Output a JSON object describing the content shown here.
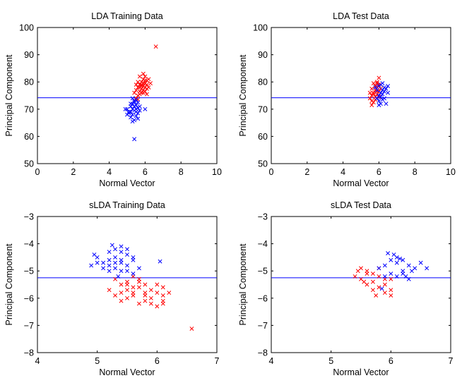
{
  "chart_data": [
    {
      "type": "scatter",
      "title": "LDA Training Data",
      "xlabel": "Normal Vector",
      "ylabel": "Principal Component",
      "xlim": [
        0,
        10
      ],
      "ylim": [
        50,
        100
      ],
      "xticks": [
        0,
        2,
        4,
        6,
        8,
        10
      ],
      "yticks": [
        50,
        60,
        70,
        80,
        90,
        100
      ],
      "marker": "x",
      "threshold_y": 74.2,
      "threshold_color": "#0000ff",
      "series": [
        {
          "color": "#ff0000",
          "points": [
            [
              5.5,
              74.0
            ],
            [
              5.6,
              75.0
            ],
            [
              5.7,
              76.5
            ],
            [
              5.8,
              77.5
            ],
            [
              5.9,
              78.5
            ],
            [
              6.0,
              79.5
            ],
            [
              6.1,
              80.5
            ],
            [
              6.2,
              81.0
            ],
            [
              5.4,
              76.0
            ],
            [
              5.5,
              77.0
            ],
            [
              5.6,
              78.0
            ],
            [
              5.7,
              79.0
            ],
            [
              5.8,
              80.0
            ],
            [
              5.9,
              81.0
            ],
            [
              6.0,
              82.0
            ],
            [
              6.1,
              79.0
            ],
            [
              6.2,
              78.0
            ],
            [
              6.3,
              79.5
            ],
            [
              5.6,
              73.5
            ],
            [
              5.7,
              75.5
            ],
            [
              5.8,
              76.0
            ],
            [
              5.9,
              77.0
            ],
            [
              6.0,
              78.0
            ],
            [
              6.1,
              77.5
            ],
            [
              5.5,
              79.0
            ],
            [
              5.6,
              80.0
            ],
            [
              5.7,
              82.0
            ],
            [
              5.8,
              79.0
            ],
            [
              5.9,
              76.0
            ],
            [
              6.0,
              76.5
            ],
            [
              6.1,
              75.5
            ],
            [
              5.9,
              83.0
            ],
            [
              6.0,
              80.5
            ],
            [
              5.7,
              78.0
            ],
            [
              5.8,
              78.5
            ],
            [
              5.9,
              79.5
            ],
            [
              6.6,
              93.0
            ]
          ]
        },
        {
          "color": "#0000ff",
          "points": [
            [
              5.0,
              70.0
            ],
            [
              5.1,
              69.0
            ],
            [
              5.2,
              71.0
            ],
            [
              5.3,
              72.0
            ],
            [
              5.4,
              73.0
            ],
            [
              5.5,
              71.5
            ],
            [
              5.6,
              70.5
            ],
            [
              5.7,
              69.5
            ],
            [
              5.2,
              67.0
            ],
            [
              5.3,
              68.0
            ],
            [
              5.4,
              66.0
            ],
            [
              5.5,
              67.5
            ],
            [
              5.6,
              68.5
            ],
            [
              5.3,
              70.0
            ],
            [
              5.4,
              69.5
            ],
            [
              5.5,
              70.0
            ],
            [
              5.6,
              72.5
            ],
            [
              5.1,
              68.5
            ],
            [
              5.2,
              72.0
            ],
            [
              5.3,
              65.5
            ],
            [
              5.4,
              71.0
            ],
            [
              5.5,
              73.5
            ],
            [
              5.6,
              66.5
            ],
            [
              4.9,
              70.0
            ],
            [
              5.0,
              68.0
            ],
            [
              5.7,
              71.0
            ],
            [
              5.3,
              74.0
            ],
            [
              5.4,
              72.5
            ],
            [
              5.5,
              69.0
            ],
            [
              5.2,
              69.0
            ],
            [
              6.0,
              70.0
            ],
            [
              5.4,
              59.0
            ]
          ]
        }
      ]
    },
    {
      "type": "scatter",
      "title": "LDA Test Data",
      "xlabel": "Normal Vector",
      "ylabel": "Principal Component",
      "xlim": [
        0,
        10
      ],
      "ylim": [
        50,
        100
      ],
      "xticks": [
        0,
        2,
        4,
        6,
        8,
        10
      ],
      "yticks": [
        50,
        60,
        70,
        80,
        90,
        100
      ],
      "marker": "x",
      "threshold_y": 74.2,
      "threshold_color": "#0000ff",
      "series": [
        {
          "color": "#ff0000",
          "points": [
            [
              5.5,
              74.0
            ],
            [
              5.6,
              75.0
            ],
            [
              5.7,
              76.0
            ],
            [
              5.8,
              77.0
            ],
            [
              5.9,
              78.0
            ],
            [
              6.0,
              79.0
            ],
            [
              5.6,
              73.0
            ],
            [
              5.7,
              72.5
            ],
            [
              5.8,
              74.5
            ],
            [
              5.9,
              75.5
            ],
            [
              6.0,
              76.5
            ],
            [
              6.1,
              77.5
            ],
            [
              5.5,
              76.0
            ],
            [
              5.6,
              77.5
            ],
            [
              5.7,
              79.5
            ],
            [
              5.8,
              78.5
            ],
            [
              5.9,
              80.0
            ],
            [
              6.0,
              81.5
            ],
            [
              5.6,
              71.5
            ],
            [
              5.7,
              75.5
            ],
            [
              5.8,
              73.5
            ],
            [
              5.9,
              76.5
            ],
            [
              6.0,
              74.5
            ],
            [
              5.9,
              79.5
            ]
          ]
        },
        {
          "color": "#0000ff",
          "points": [
            [
              5.9,
              74.0
            ],
            [
              6.0,
              75.0
            ],
            [
              6.1,
              76.0
            ],
            [
              6.2,
              77.0
            ],
            [
              6.3,
              78.0
            ],
            [
              6.4,
              77.5
            ],
            [
              6.5,
              78.5
            ],
            [
              6.0,
              73.0
            ],
            [
              6.1,
              74.5
            ],
            [
              6.2,
              75.5
            ],
            [
              6.3,
              76.5
            ],
            [
              6.1,
              72.0
            ],
            [
              6.2,
              73.5
            ],
            [
              6.4,
              72.0
            ],
            [
              6.0,
              78.5
            ],
            [
              6.1,
              79.0
            ],
            [
              5.8,
              78.0
            ],
            [
              5.9,
              77.0
            ],
            [
              6.3,
              74.0
            ],
            [
              6.0,
              71.5
            ],
            [
              6.5,
              76.0
            ],
            [
              6.2,
              79.5
            ]
          ]
        }
      ]
    },
    {
      "type": "scatter",
      "title": "sLDA Training Data",
      "xlabel": "Normal Vector",
      "ylabel": "Principal Component",
      "xlim": [
        4,
        7
      ],
      "ylim": [
        -8,
        -3
      ],
      "xticks": [
        4,
        5,
        6,
        7
      ],
      "yticks": [
        -3,
        -4,
        -5,
        -6,
        -7,
        -8
      ],
      "marker": "x",
      "threshold_y": -5.25,
      "threshold_color": "#0000ff",
      "series": [
        {
          "color": "#ff0000",
          "points": [
            [
              5.3,
              -5.3
            ],
            [
              5.4,
              -5.5
            ],
            [
              5.5,
              -5.7
            ],
            [
              5.6,
              -5.8
            ],
            [
              5.7,
              -5.6
            ],
            [
              5.8,
              -5.9
            ],
            [
              5.9,
              -6.0
            ],
            [
              6.0,
              -5.8
            ],
            [
              6.1,
              -6.1
            ],
            [
              5.5,
              -5.4
            ],
            [
              5.6,
              -5.2
            ],
            [
              5.7,
              -5.4
            ],
            [
              5.8,
              -5.5
            ],
            [
              5.9,
              -5.7
            ],
            [
              6.0,
              -5.5
            ],
            [
              6.1,
              -5.9
            ],
            [
              6.2,
              -5.8
            ],
            [
              5.2,
              -5.7
            ],
            [
              5.3,
              -5.9
            ],
            [
              5.4,
              -6.1
            ],
            [
              5.5,
              -6.0
            ],
            [
              5.6,
              -5.9
            ],
            [
              5.7,
              -6.2
            ],
            [
              5.8,
              -6.1
            ],
            [
              5.9,
              -6.2
            ],
            [
              6.0,
              -6.3
            ],
            [
              5.4,
              -5.8
            ],
            [
              5.5,
              -5.5
            ],
            [
              5.6,
              -5.6
            ],
            [
              5.7,
              -5.3
            ],
            [
              6.1,
              -5.6
            ],
            [
              5.8,
              -5.8
            ],
            [
              6.1,
              -6.2
            ],
            [
              6.58,
              -7.12
            ]
          ]
        },
        {
          "color": "#0000ff",
          "points": [
            [
              4.9,
              -4.8
            ],
            [
              5.0,
              -4.5
            ],
            [
              5.1,
              -4.7
            ],
            [
              5.2,
              -4.3
            ],
            [
              5.3,
              -4.5
            ],
            [
              5.4,
              -4.7
            ],
            [
              5.5,
              -4.4
            ],
            [
              5.6,
              -4.6
            ],
            [
              5.2,
              -4.8
            ],
            [
              5.3,
              -4.9
            ],
            [
              5.4,
              -5.0
            ],
            [
              5.5,
              -4.8
            ],
            [
              5.6,
              -5.1
            ],
            [
              5.1,
              -4.9
            ],
            [
              5.2,
              -4.6
            ],
            [
              5.3,
              -4.2
            ],
            [
              5.4,
              -4.1
            ],
            [
              5.5,
              -4.2
            ],
            [
              5.6,
              -4.5
            ],
            [
              5.7,
              -4.9
            ],
            [
              5.0,
              -4.7
            ],
            [
              5.2,
              -5.0
            ],
            [
              5.3,
              -4.7
            ],
            [
              5.4,
              -4.6
            ],
            [
              5.5,
              -5.0
            ],
            [
              6.05,
              -4.65
            ],
            [
              5.4,
              -4.3
            ],
            [
              5.25,
              -4.05
            ],
            [
              4.95,
              -4.4
            ],
            [
              5.35,
              -5.2
            ]
          ]
        }
      ]
    },
    {
      "type": "scatter",
      "title": "sLDA Test Data",
      "xlabel": "Normal Vector",
      "ylabel": "Principal Component",
      "xlim": [
        4,
        7
      ],
      "ylim": [
        -8,
        -3
      ],
      "xticks": [
        4,
        5,
        6,
        7
      ],
      "yticks": [
        -3,
        -4,
        -5,
        -6,
        -7,
        -8
      ],
      "marker": "x",
      "threshold_y": -5.25,
      "threshold_color": "#0000ff",
      "series": [
        {
          "color": "#ff0000",
          "points": [
            [
              5.4,
              -5.2
            ],
            [
              5.5,
              -5.3
            ],
            [
              5.6,
              -5.0
            ],
            [
              5.7,
              -5.4
            ],
            [
              5.8,
              -5.2
            ],
            [
              5.9,
              -5.5
            ],
            [
              6.0,
              -5.3
            ],
            [
              5.5,
              -4.9
            ],
            [
              5.6,
              -5.5
            ],
            [
              5.7,
              -5.7
            ],
            [
              5.8,
              -5.6
            ],
            [
              5.9,
              -5.3
            ],
            [
              6.0,
              -5.7
            ],
            [
              5.6,
              -5.1
            ],
            [
              5.8,
              -4.9
            ],
            [
              5.7,
              -5.1
            ],
            [
              5.9,
              -5.8
            ],
            [
              5.75,
              -5.9
            ],
            [
              6.0,
              -5.9
            ],
            [
              5.45,
              -5.0
            ],
            [
              5.55,
              -5.4
            ]
          ]
        },
        {
          "color": "#0000ff",
          "points": [
            [
              5.8,
              -4.9
            ],
            [
              5.9,
              -4.8
            ],
            [
              6.0,
              -4.6
            ],
            [
              6.1,
              -4.7
            ],
            [
              6.2,
              -5.0
            ],
            [
              6.3,
              -4.8
            ],
            [
              6.4,
              -4.9
            ],
            [
              6.5,
              -4.7
            ],
            [
              6.0,
              -5.1
            ],
            [
              6.1,
              -5.2
            ],
            [
              6.2,
              -5.1
            ],
            [
              6.3,
              -5.3
            ],
            [
              6.1,
              -4.5
            ],
            [
              6.05,
              -4.4
            ],
            [
              5.95,
              -4.35
            ],
            [
              6.35,
              -5.0
            ],
            [
              6.6,
              -4.9
            ],
            [
              6.25,
              -5.2
            ],
            [
              5.9,
              -5.2
            ],
            [
              6.15,
              -4.55
            ],
            [
              5.85,
              -5.65
            ],
            [
              6.2,
              -4.6
            ]
          ]
        }
      ]
    }
  ]
}
